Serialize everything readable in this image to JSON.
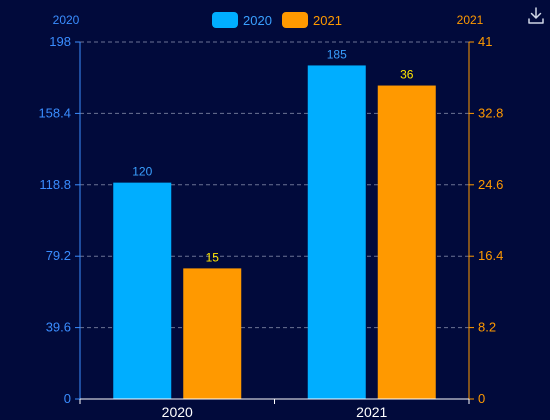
{
  "chart_data": {
    "type": "bar",
    "categories": [
      "2020",
      "2021"
    ],
    "series": [
      {
        "name": "2020",
        "values": [
          120,
          185
        ],
        "axis": "left",
        "color": "#00aeff",
        "label_color": "#3aa0ff"
      },
      {
        "name": "2021",
        "values": [
          15,
          36
        ],
        "axis": "right",
        "color": "#ff9900",
        "label_color": "#ffe600"
      }
    ],
    "left_axis": {
      "title": "2020",
      "min": 0,
      "max": 198,
      "ticks": [
        "0",
        "39.6",
        "79.2",
        "118.8",
        "158.4",
        "198"
      ],
      "color": "#3a8dff"
    },
    "right_axis": {
      "title": "2021",
      "min": 0,
      "max": 41,
      "ticks": [
        "0",
        "8.2",
        "16.4",
        "24.6",
        "32.8",
        "41"
      ],
      "color": "#ff9900"
    },
    "grid": true,
    "legend_position": "top-center"
  },
  "toolbar": {
    "download_icon": "download-icon"
  }
}
